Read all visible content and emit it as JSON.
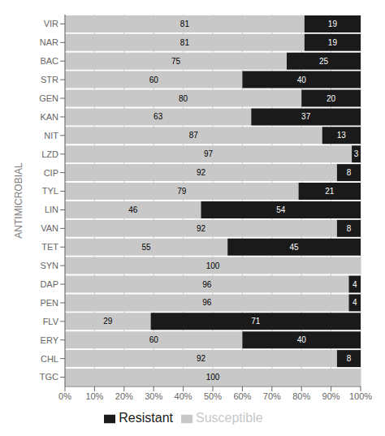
{
  "chart_data": {
    "type": "bar",
    "orientation": "horizontal",
    "stacked": true,
    "categories": [
      "VIR",
      "NAR",
      "BAC",
      "STR",
      "GEN",
      "KAN",
      "NIT",
      "LZD",
      "CIP",
      "TYL",
      "LIN",
      "VAN",
      "TET",
      "SYN",
      "DAP",
      "PEN",
      "FLV",
      "ERY",
      "CHL",
      "TGC"
    ],
    "series": [
      {
        "name": "Susceptible",
        "color": "#c8c8c8",
        "values": [
          81,
          81,
          75,
          60,
          80,
          63,
          87,
          97,
          92,
          79,
          46,
          92,
          55,
          100,
          96,
          96,
          29,
          60,
          92,
          100
        ]
      },
      {
        "name": "Resistant",
        "color": "#1a1a1a",
        "values": [
          19,
          19,
          25,
          40,
          20,
          37,
          13,
          3,
          8,
          21,
          54,
          8,
          45,
          0,
          4,
          4,
          71,
          40,
          8,
          0
        ]
      }
    ],
    "xlim": [
      0,
      100
    ],
    "xticks": [
      {
        "value": 0,
        "label": "0%"
      },
      {
        "value": 10,
        "label": "10%"
      },
      {
        "value": 20,
        "label": "20%"
      },
      {
        "value": 30,
        "label": "30%"
      },
      {
        "value": 40,
        "label": "40%"
      },
      {
        "value": 50,
        "label": "50%"
      },
      {
        "value": 60,
        "label": "60%"
      },
      {
        "value": 70,
        "label": "70%"
      },
      {
        "value": 80,
        "label": "80%"
      },
      {
        "value": 90,
        "label": "90%"
      },
      {
        "value": 100,
        "label": "100%"
      }
    ],
    "y_label": "ANTIMICROBIAL",
    "data_labels": true,
    "grid": true,
    "legend": "bottom"
  }
}
